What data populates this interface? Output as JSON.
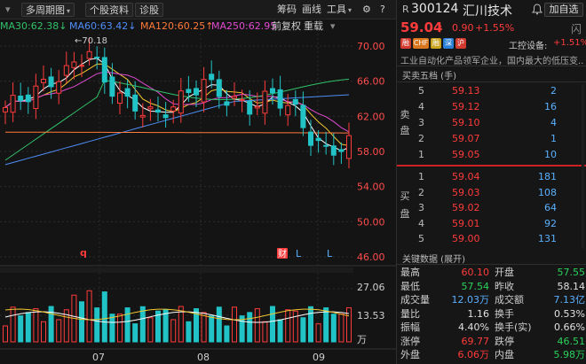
{
  "toolbar": {
    "period": "多周期图",
    "stock_info": "个股资料",
    "diagnose": "诊股",
    "chip": "筹码",
    "draw": "画线",
    "tools": "工具",
    "settings": "⚙"
  },
  "ma_legend": [
    {
      "label": "MA30:62.38",
      "arrow": "↓",
      "color": "#31c26a"
    },
    {
      "label": "MA60:63.42",
      "arrow": "↓",
      "color": "#4e8ef7"
    },
    {
      "label": "MA120:60.25",
      "arrow": "↑",
      "color": "#ff7a3a"
    },
    {
      "label": "MA250:62.95",
      "arrow": "",
      "color": "#e04ad0"
    }
  ],
  "adjust": {
    "label": "前复权"
  },
  "overlay": {
    "label": "重载"
  },
  "stock": {
    "prefix": "R",
    "code": "300124",
    "name": "汇川技术",
    "watch_label": "加自选",
    "price": "59.04",
    "change": "0.90",
    "pct": "+1.55%",
    "concept_label": "工控设备:",
    "concept_val": "+1.51%",
    "desc": "工业自动化产品领军企业，国内最大的低压变..."
  },
  "tags": [
    {
      "text": "融",
      "color": "#d13a2f"
    },
    {
      "text": "CHF",
      "color": "#d9771f"
    },
    {
      "text": "融",
      "color": "#c9a21e"
    },
    {
      "text": "深",
      "color": "#2a7fd6"
    },
    {
      "text": "沪",
      "color": "#d13a2f"
    }
  ],
  "orderbook": {
    "title": "买卖五档 (手)",
    "sell_label": [
      "卖",
      "盘"
    ],
    "buy_label": [
      "买",
      "盘"
    ],
    "sell": [
      {
        "level": "5",
        "price": "59.13",
        "vol": "2"
      },
      {
        "level": "4",
        "price": "59.12",
        "vol": "16"
      },
      {
        "level": "3",
        "price": "59.10",
        "vol": "4"
      },
      {
        "level": "2",
        "price": "59.07",
        "vol": "1"
      },
      {
        "level": "1",
        "price": "59.05",
        "vol": "10"
      }
    ],
    "buy": [
      {
        "level": "1",
        "price": "59.04",
        "vol": "181"
      },
      {
        "level": "2",
        "price": "59.03",
        "vol": "108"
      },
      {
        "level": "3",
        "price": "59.02",
        "vol": "64"
      },
      {
        "level": "4",
        "price": "59.01",
        "vol": "92"
      },
      {
        "level": "5",
        "price": "59.00",
        "vol": "131"
      }
    ]
  },
  "key_data": {
    "title": "关键数据 (展开)",
    "rows": [
      {
        "k1": "最高",
        "v1": "60.10",
        "c1": "red",
        "k2": "开盘",
        "v2": "57.55",
        "c2": "green"
      },
      {
        "k1": "最低",
        "v1": "57.54",
        "c1": "green",
        "k2": "昨收",
        "v2": "58.14",
        "c2": "white"
      },
      {
        "k1": "成交量",
        "v1": "12.03万",
        "c1": "blue",
        "k2": "成交额",
        "v2": "7.13亿",
        "c2": "blue"
      },
      {
        "k1": "量比",
        "v1": "1.16",
        "c1": "white",
        "k2": "换手",
        "v2": "0.53%",
        "c2": "white"
      },
      {
        "k1": "振幅",
        "v1": "4.40%",
        "c1": "white",
        "k2": "换手(实)",
        "v2": "0.66%",
        "c2": "white"
      },
      {
        "k1": "涨停",
        "v1": "69.77",
        "c1": "red",
        "k2": "跌停",
        "v2": "46.51",
        "c2": "green"
      },
      {
        "k1": "外盘",
        "v1": "6.06万",
        "c1": "red",
        "k2": "内盘",
        "v2": "5.98万",
        "c2": "green"
      }
    ]
  },
  "chart_data": {
    "type": "candlestick",
    "price_axis": [
      "70.00",
      "66.00",
      "62.00",
      "58.00",
      "54.00",
      "50.00",
      "46.00"
    ],
    "ylim": [
      46,
      72
    ],
    "max_label": "←70.18",
    "volume_axis": [
      "27.06",
      "13.53",
      "万"
    ],
    "month_labels": [
      "07",
      "08",
      "09"
    ],
    "markers": {
      "q": "q",
      "cai": "财",
      "l1": "L",
      "l2": "L"
    }
  }
}
